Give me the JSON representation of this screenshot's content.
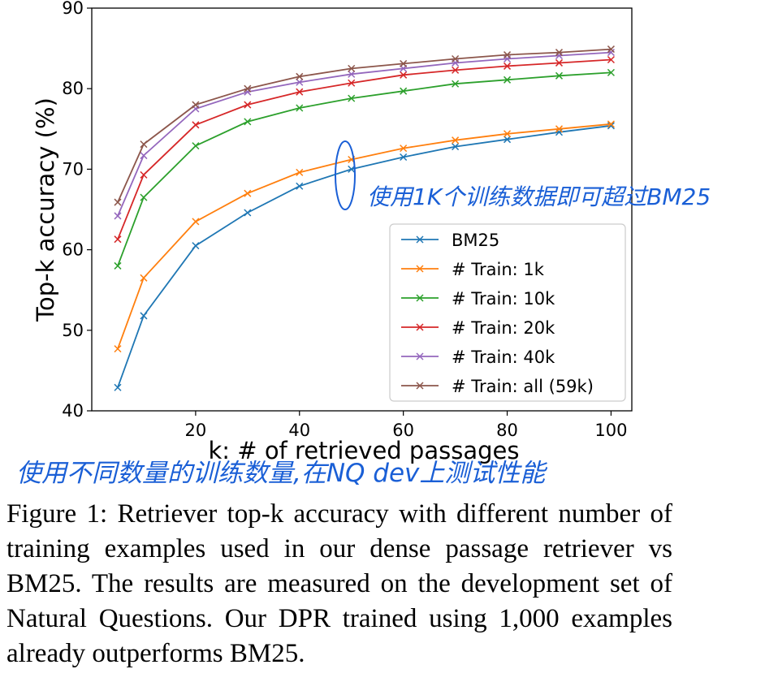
{
  "chart_data": {
    "type": "line",
    "xlabel": "k: # of retrieved passages",
    "ylabel": "Top-k accuracy (%)",
    "xlim": [
      0,
      104
    ],
    "ylim": [
      40,
      90
    ],
    "x_ticks": [
      20,
      40,
      60,
      80,
      100
    ],
    "y_ticks": [
      40,
      50,
      60,
      70,
      80,
      90
    ],
    "legend_position": "lower-right",
    "grid": false,
    "x": [
      5,
      10,
      20,
      30,
      40,
      50,
      60,
      70,
      80,
      90,
      100
    ],
    "series": [
      {
        "name": "BM25",
        "color": "#1f77b4",
        "values": [
          42.9,
          51.8,
          60.5,
          64.6,
          67.9,
          70.0,
          71.5,
          72.8,
          73.7,
          74.6,
          75.4
        ]
      },
      {
        "name": "# Train: 1k",
        "color": "#ff7f0e",
        "values": [
          47.7,
          56.5,
          63.5,
          67.0,
          69.6,
          71.2,
          72.6,
          73.6,
          74.4,
          75.0,
          75.6
        ]
      },
      {
        "name": "# Train: 10k",
        "color": "#2ca02c",
        "values": [
          58.0,
          66.5,
          72.9,
          75.9,
          77.6,
          78.8,
          79.7,
          80.6,
          81.1,
          81.6,
          82.0
        ]
      },
      {
        "name": "# Train: 20k",
        "color": "#d62728",
        "values": [
          61.3,
          69.3,
          75.5,
          78.0,
          79.6,
          80.7,
          81.7,
          82.3,
          82.8,
          83.2,
          83.6
        ]
      },
      {
        "name": "# Train: 40k",
        "color": "#9467bd",
        "values": [
          64.2,
          71.7,
          77.5,
          79.6,
          80.8,
          81.8,
          82.5,
          83.2,
          83.7,
          84.1,
          84.5
        ]
      },
      {
        "name": "# Train: all (59k)",
        "color": "#8c564b",
        "values": [
          65.9,
          73.1,
          78.0,
          80.0,
          81.5,
          82.5,
          83.1,
          83.7,
          84.2,
          84.5,
          84.9
        ]
      }
    ]
  },
  "annotations": {
    "note_top": "使用1K个训练数据即可超过BM25",
    "note_bottom": "使用不同数量的训练数量,在NQ dev上测试性能"
  },
  "caption": "Figure 1: Retriever top-k accuracy with different number of training examples used in our dense passage retriever vs BM25. The results are measured on the development set of Natural Questions. Our DPR trained using 1,000 examples already outperforms BM25."
}
